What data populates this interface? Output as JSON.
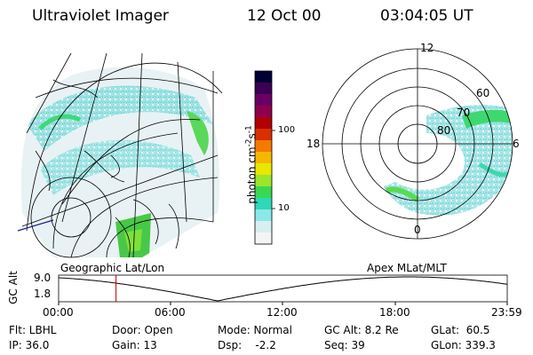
{
  "header": {
    "title": "Ultraviolet Imager",
    "date": "12 Oct 00",
    "time": "03:04:05 UT"
  },
  "left_panel": {
    "caption": "Geographic Lat/Lon"
  },
  "right_panel": {
    "caption": "Apex MLat/MLT",
    "lat_labels": [
      "80",
      "70",
      "60"
    ],
    "mlt_labels": {
      "top": "12",
      "left": "18",
      "right": "6",
      "bottom": "0"
    }
  },
  "colorbar": {
    "unit": "photon cm",
    "unit_sup1": "-2",
    "unit_mid": "s",
    "unit_sup2": "-1",
    "ticks": [
      "100",
      "10"
    ],
    "colors": [
      "#000033",
      "#3b0052",
      "#6a0066",
      "#8e004d",
      "#b00000",
      "#d83000",
      "#f47a00",
      "#f5b800",
      "#e8e800",
      "#9be52a",
      "#38d854",
      "#2ed8b8",
      "#8ce8e8",
      "#d8eef0",
      "#f4f4f4"
    ]
  },
  "altitude_plot": {
    "ylabel": "GC Alt",
    "yticks": [
      "9.0",
      "1.8"
    ],
    "xticks": [
      "00:00",
      "06:00",
      "12:00",
      "18:00",
      "23:59"
    ],
    "marker_hour": 3.07
  },
  "info": {
    "flt": "Flt: LBHL",
    "ip": "IP: 36.0",
    "door": "Door: Open",
    "gain": "Gain: 13",
    "mode": "Mode: Normal",
    "dsp": "Dsp:",
    "dsp_value": "-2.2",
    "gc_alt": "GC Alt: 8.2 Re",
    "seq": "Seq: 39",
    "glat": "GLat:",
    "glat_value": "60.5",
    "glon": "GLon: 339.3"
  }
}
